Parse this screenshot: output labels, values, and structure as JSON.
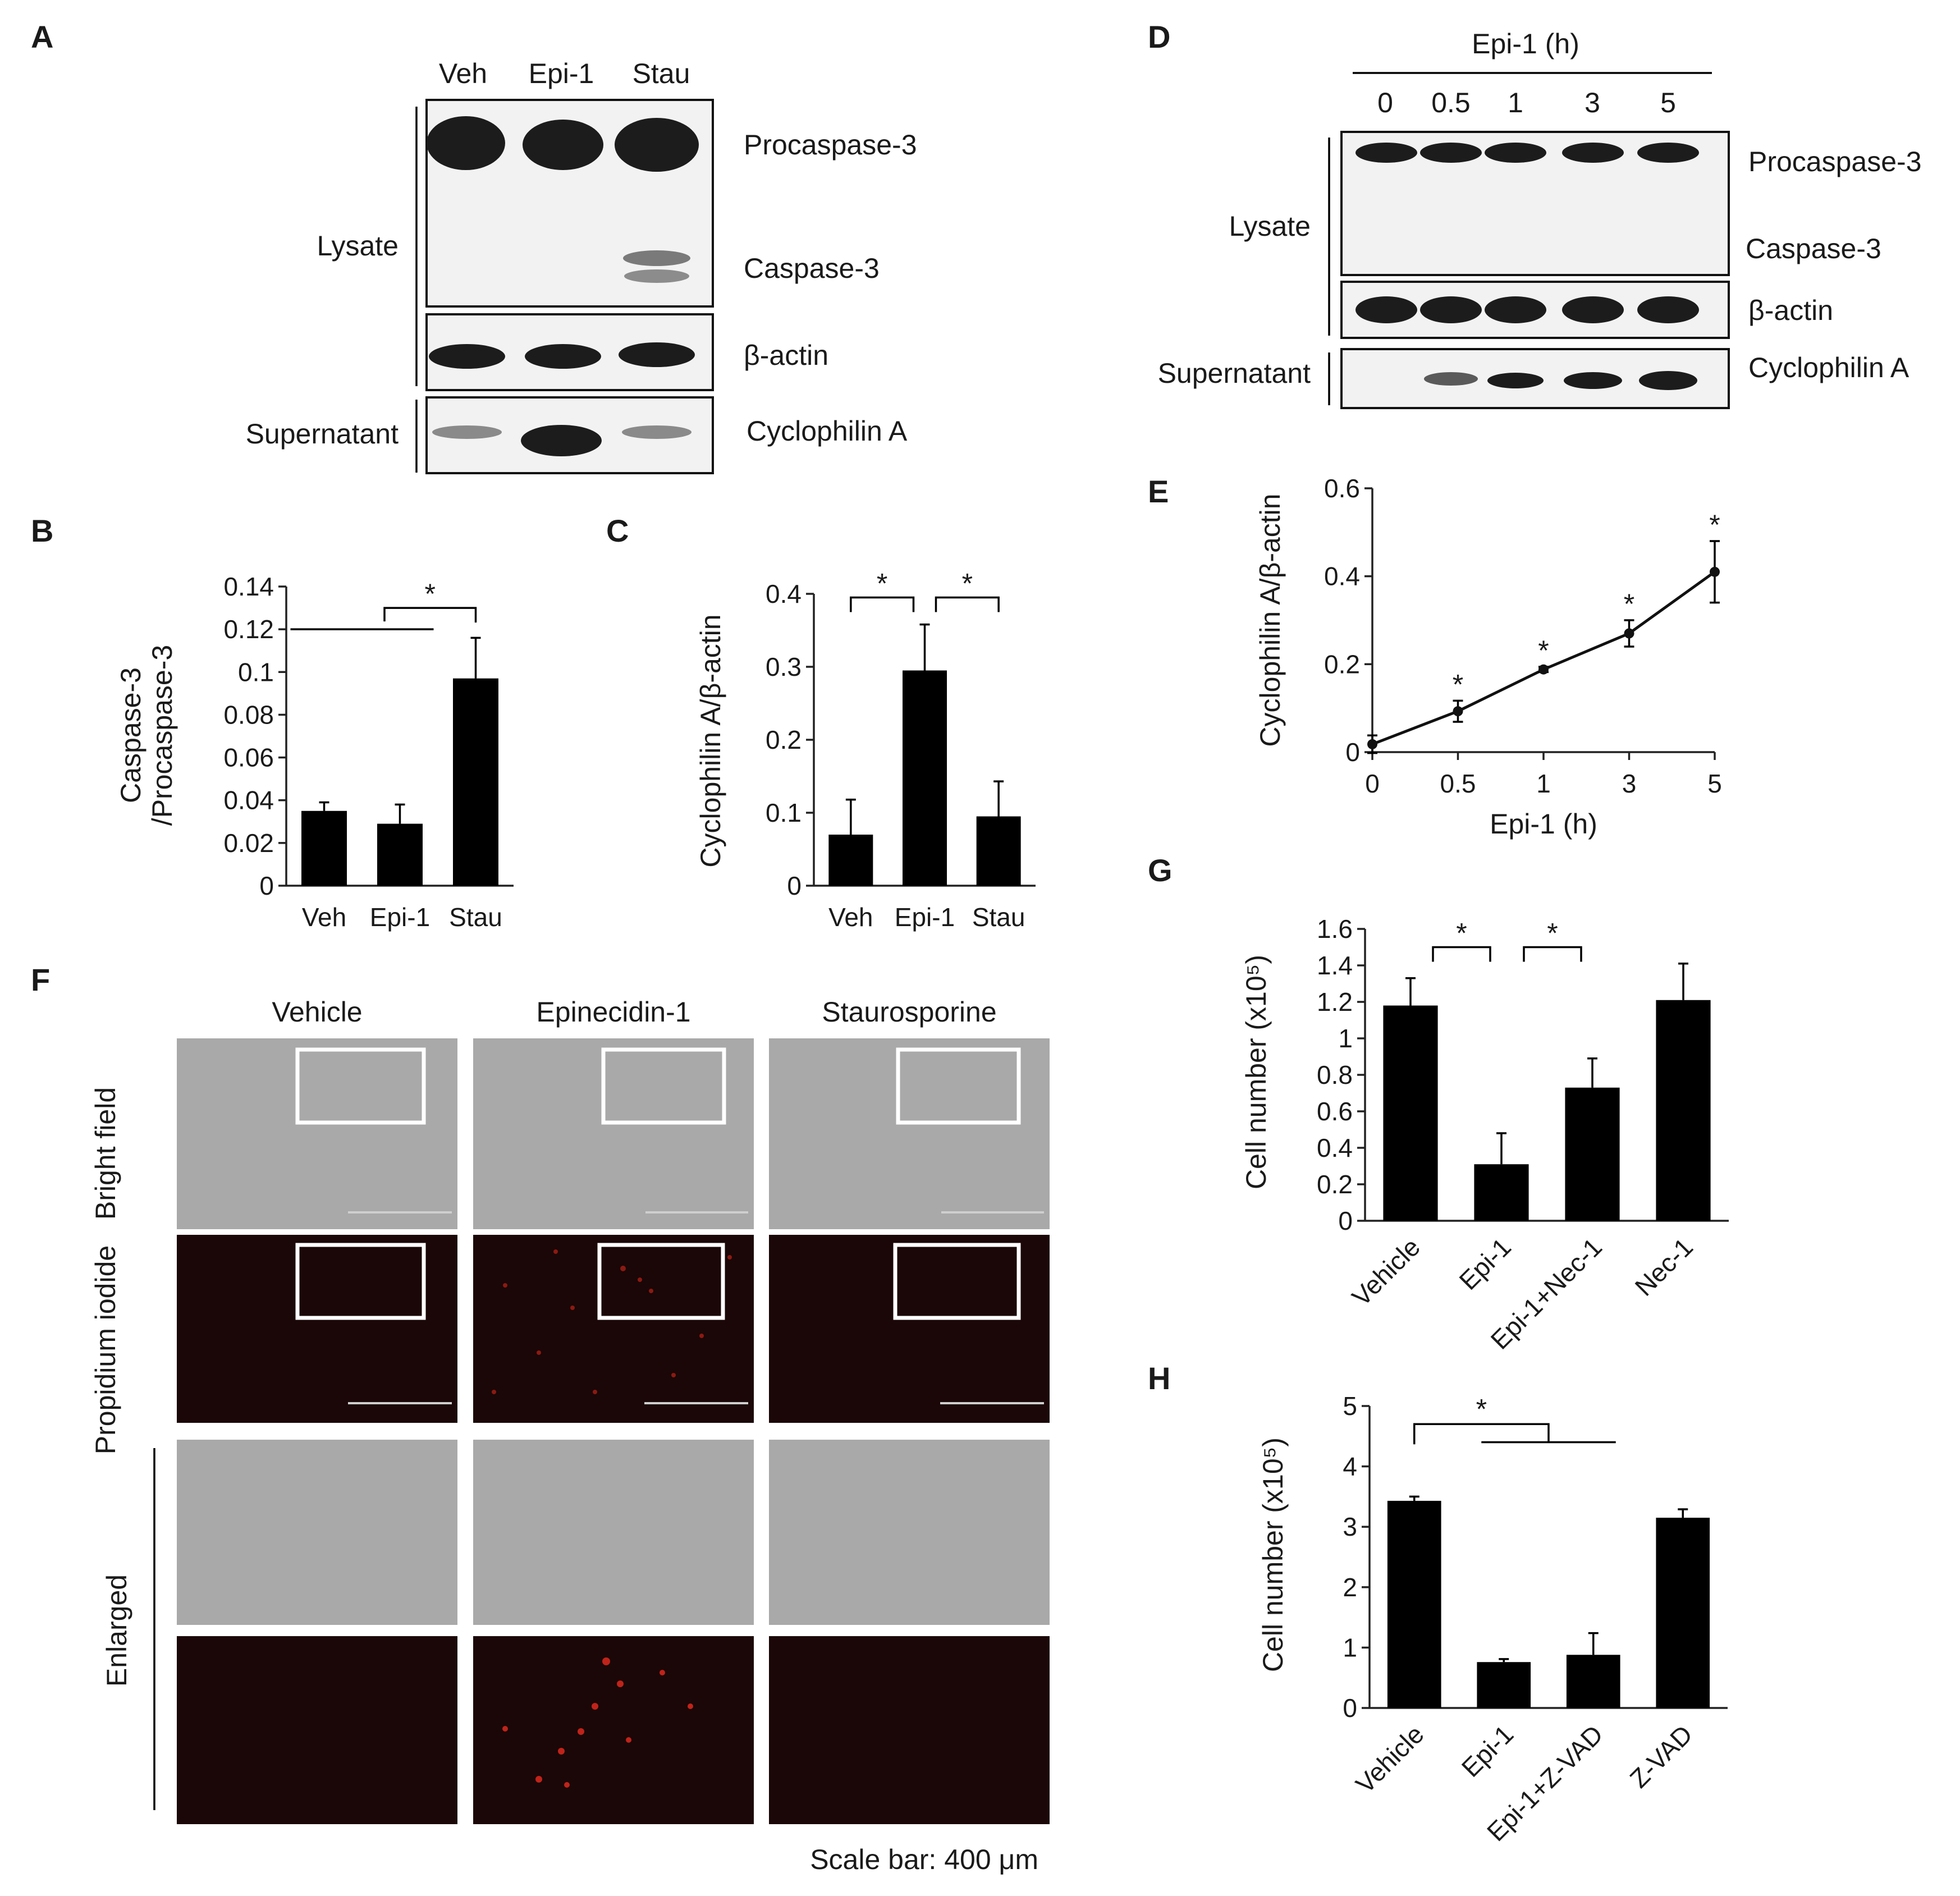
{
  "panels": {
    "A": {
      "label": "A",
      "lanes": [
        "Veh",
        "Epi-1",
        "Stau"
      ],
      "group_lysate": "Lysate",
      "group_supernatant": "Supernatant",
      "bands": [
        "Procaspase-3",
        "Caspase-3",
        "β-actin",
        "Cyclophilin A"
      ]
    },
    "D": {
      "label": "D",
      "treatment": "Epi-1 (h)",
      "lanes": [
        "0",
        "0.5",
        "1",
        "3",
        "5"
      ],
      "group_lysate": "Lysate",
      "group_supernatant": "Supernatant",
      "bands": [
        "Procaspase-3",
        "Caspase-3",
        "β-actin",
        "Cyclophilin A"
      ]
    },
    "B": {
      "label": "B"
    },
    "C": {
      "label": "C"
    },
    "E": {
      "label": "E"
    },
    "F": {
      "label": "F",
      "columns": [
        "Vehicle",
        "Epinecidin-1",
        "Staurosporine"
      ],
      "rows": [
        "Bright field",
        "Propidium iodide",
        "Enlarged"
      ],
      "scale_bar": "Scale bar: 400 μm"
    },
    "G": {
      "label": "G"
    },
    "H": {
      "label": "H"
    }
  },
  "chart_data": [
    {
      "panel": "B",
      "type": "bar",
      "categories": [
        "Veh",
        "Epi-1",
        "Stau"
      ],
      "values": [
        0.035,
        0.029,
        0.097
      ],
      "errors": [
        0.004,
        0.009,
        0.019
      ],
      "ylabel": [
        "Caspase-3",
        "/Procaspase-3"
      ],
      "ylim": [
        0,
        0.14
      ],
      "yticks": [
        "0",
        "0.02",
        "0.04",
        "0.06",
        "0.08",
        "0.1",
        "0.12",
        "0.14"
      ],
      "significance": "*"
    },
    {
      "panel": "C",
      "type": "bar",
      "categories": [
        "Veh",
        "Epi-1",
        "Stau"
      ],
      "values": [
        0.07,
        0.295,
        0.095
      ],
      "errors": [
        0.048,
        0.063,
        0.048
      ],
      "ylabel": "Cyclophilin A/β-actin",
      "ylim": [
        0,
        0.4
      ],
      "yticks": [
        "0",
        "0.1",
        "0.2",
        "0.3",
        "0.4"
      ],
      "significance": [
        "*",
        "*"
      ]
    },
    {
      "panel": "E",
      "type": "line",
      "x": [
        "0",
        "0.5",
        "1",
        "3",
        "5"
      ],
      "values": [
        0.018,
        0.093,
        0.188,
        0.27,
        0.41
      ],
      "errors": [
        0.02,
        0.024,
        0.006,
        0.03,
        0.07
      ],
      "xlabel": "Epi-1 (h)",
      "ylabel": "Cyclophilin A/β-actin",
      "ylim": [
        0,
        0.6
      ],
      "yticks": [
        "0",
        "0.2",
        "0.4",
        "0.6"
      ],
      "significance": [
        "",
        "*",
        "*",
        "*",
        "*"
      ]
    },
    {
      "panel": "G",
      "type": "bar",
      "categories": [
        "Vehicle",
        "Epi-1",
        "Epi-1+Nec-1",
        "Nec-1"
      ],
      "values": [
        1.18,
        0.31,
        0.73,
        1.21
      ],
      "errors": [
        0.15,
        0.17,
        0.16,
        0.2
      ],
      "ylabel": "Cell number (x10⁵)",
      "ylim": [
        0,
        1.6
      ],
      "yticks": [
        "0",
        "0.2",
        "0.4",
        "0.6",
        "0.8",
        "1",
        "1.2",
        "1.4",
        "1.6"
      ],
      "significance": [
        "*",
        "*"
      ]
    },
    {
      "panel": "H",
      "type": "bar",
      "categories": [
        "Vehicle",
        "Epi-1",
        "Epi-1+Z-VAD",
        "Z-VAD"
      ],
      "values": [
        3.43,
        0.76,
        0.88,
        3.15
      ],
      "errors": [
        0.07,
        0.05,
        0.36,
        0.14
      ],
      "ylabel": "Cell number (x10⁵)",
      "ylim": [
        0,
        5
      ],
      "yticks": [
        "0",
        "1",
        "2",
        "3",
        "4",
        "5"
      ],
      "significance": "*"
    }
  ]
}
